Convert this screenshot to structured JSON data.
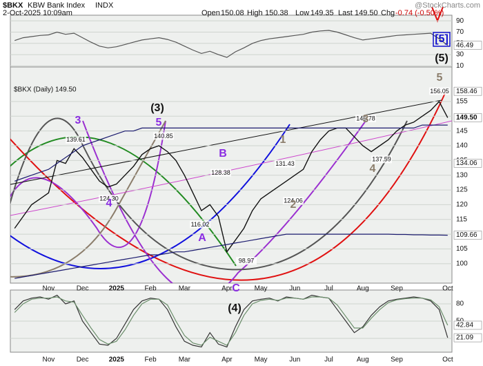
{
  "header": {
    "symbol": "$BKX",
    "name": "KBW Bank Index",
    "exchange": "INDX",
    "timestamp": "2-Oct-2025 10:09am",
    "open_label": "Open",
    "open": "150.08",
    "high_label": "High",
    "high": "150.38",
    "low_label": "Low",
    "low": "149.35",
    "last_label": "Last",
    "last": "149.50",
    "chg_label": "Chg",
    "chg": "-0.74 (-0.50%)",
    "source": "@StockCharts.com"
  },
  "chart_data": [
    {
      "type": "line",
      "ylim": [
        8,
        100
      ],
      "yticks": [
        10,
        30,
        50,
        70,
        90
      ],
      "grid": true,
      "series": [
        {
          "color": "#555555",
          "values": [
            55,
            60,
            62,
            64,
            65,
            70,
            66,
            68,
            60,
            52,
            45,
            42,
            44,
            48,
            52,
            56,
            58,
            60,
            57,
            52,
            45,
            38,
            32,
            36,
            30,
            25,
            35,
            42,
            50,
            55,
            58,
            60,
            62,
            64,
            66,
            70,
            72,
            73,
            70,
            65,
            60,
            56,
            58,
            60,
            62,
            64,
            65,
            66,
            67,
            68,
            58,
            46.49
          ]
        }
      ],
      "badges": [
        46.49
      ]
    },
    {
      "type": "line",
      "label": "$BKX (Daily) 149.50",
      "ylim": [
        93.4,
        166.7
      ],
      "yticks": [
        100,
        105,
        110,
        115,
        120,
        125,
        130,
        135,
        140,
        145,
        150,
        155
      ],
      "grid": true,
      "categories": [
        null,
        null,
        null,
        null,
        "Nov",
        null,
        null,
        null,
        "Dec",
        null,
        null,
        null,
        "2025",
        null,
        null,
        null,
        "Feb",
        null,
        null,
        null,
        "Mar",
        null,
        null,
        null,
        null,
        "Apr",
        null,
        null,
        null,
        "May",
        null,
        null,
        null,
        "Jun",
        null,
        null,
        null,
        "Jul",
        null,
        null,
        null,
        "Aug",
        null,
        null,
        null,
        "Sep",
        null,
        null,
        null,
        null,
        null,
        "Oct"
      ],
      "series": [
        {
          "color": "#111111",
          "values": [
            112,
            116,
            120,
            122,
            124,
            135,
            134,
            139,
            136,
            132,
            128,
            126,
            127,
            130,
            133,
            137,
            139,
            140,
            138,
            135,
            130,
            124,
            118,
            120,
            116,
            104,
            108,
            112,
            118,
            122,
            124,
            126,
            128,
            130,
            132,
            138,
            142,
            145,
            146,
            146,
            143,
            140,
            138,
            140,
            142,
            145,
            147,
            148,
            150,
            152,
            155,
            149.5
          ]
        },
        {
          "color": "#1a1a6e",
          "values": [
            128,
            129,
            130,
            131,
            132,
            134,
            136,
            138,
            140,
            141,
            142,
            143,
            144,
            145,
            145,
            146,
            146,
            146,
            146,
            146,
            146,
            146,
            146,
            146,
            146,
            146,
            146,
            146,
            146,
            146,
            146,
            146,
            146,
            146,
            146,
            146,
            146,
            146,
            146,
            146,
            146,
            146,
            146,
            146,
            146,
            146,
            146,
            146,
            147,
            147,
            147,
            147
          ]
        },
        {
          "color": "#1a1a6e",
          "values": [
            95,
            95.5,
            96,
            96.5,
            97,
            97.5,
            98,
            98.5,
            99,
            99.5,
            100,
            100.5,
            101,
            101.5,
            102,
            102.5,
            103,
            103,
            103.5,
            104,
            104,
            104.5,
            105,
            105.5,
            106,
            106.5,
            107,
            107.5,
            108,
            108.5,
            109,
            109.5,
            110,
            110,
            110,
            110,
            110,
            110,
            110,
            110,
            110,
            110,
            110,
            110,
            110,
            109.9,
            109.9,
            109.8,
            109.8,
            109.7,
            109.7,
            109.66
          ]
        }
      ],
      "pivots": [
        139.61,
        {
          "value": 124.3,
          "label": "124.30"
        },
        140.85,
        128.38,
        116.02,
        131.43,
        124.06,
        146.78,
        137.59,
        156.05,
        98.97
      ],
      "badges": [
        158.46,
        {
          "value": 149.5,
          "label": "149.50"
        },
        134.06,
        109.66
      ],
      "annotations": [
        {
          "text": "3",
          "color": "#8a2be2"
        },
        {
          "text": "5",
          "color": "#8a2be2"
        },
        {
          "text": "(3)",
          "color": "#111111"
        },
        {
          "text": "4",
          "color": "#8a2be2"
        },
        {
          "text": "B",
          "color": "#8a2be2"
        },
        {
          "text": "A",
          "color": "#8a2be2"
        },
        {
          "text": "C",
          "color": "#8a2be2"
        },
        {
          "text": "1",
          "color": "#8b7d6b"
        },
        {
          "text": "2",
          "color": "#8b7d6b"
        },
        {
          "text": "3",
          "color": "#8b7d6b"
        },
        {
          "text": "4",
          "color": "#8b7d6b"
        },
        {
          "text": "5",
          "color": "#8b7d6b"
        },
        {
          "text": "(5)",
          "color": "#111111"
        },
        {
          "text": "[5]",
          "color": "#1010cc"
        }
      ]
    },
    {
      "type": "line",
      "ylim": [
        -4,
        104
      ],
      "yticks": [
        20,
        50,
        80
      ],
      "grid": true,
      "series": [
        {
          "color": "#333333",
          "values": [
            70,
            85,
            90,
            92,
            88,
            95,
            80,
            85,
            50,
            30,
            10,
            8,
            20,
            45,
            70,
            85,
            90,
            88,
            70,
            40,
            15,
            8,
            5,
            30,
            10,
            5,
            40,
            70,
            85,
            88,
            90,
            85,
            92,
            90,
            88,
            95,
            92,
            90,
            70,
            50,
            30,
            40,
            60,
            75,
            85,
            88,
            90,
            92,
            90,
            85,
            70,
            21.09
          ]
        },
        {
          "color": "#6b8e6b",
          "values": [
            65,
            80,
            88,
            90,
            90,
            92,
            85,
            83,
            60,
            38,
            18,
            10,
            15,
            35,
            60,
            80,
            88,
            88,
            78,
            50,
            25,
            12,
            8,
            22,
            15,
            8,
            30,
            60,
            80,
            86,
            88,
            86,
            90,
            90,
            88,
            92,
            92,
            90,
            78,
            58,
            38,
            38,
            55,
            70,
            82,
            87,
            89,
            90,
            90,
            87,
            75,
            42.84
          ]
        }
      ],
      "annotations": [
        {
          "text": "(4)",
          "color": "#111111"
        }
      ],
      "badges": [
        42.84,
        21.09
      ]
    }
  ]
}
